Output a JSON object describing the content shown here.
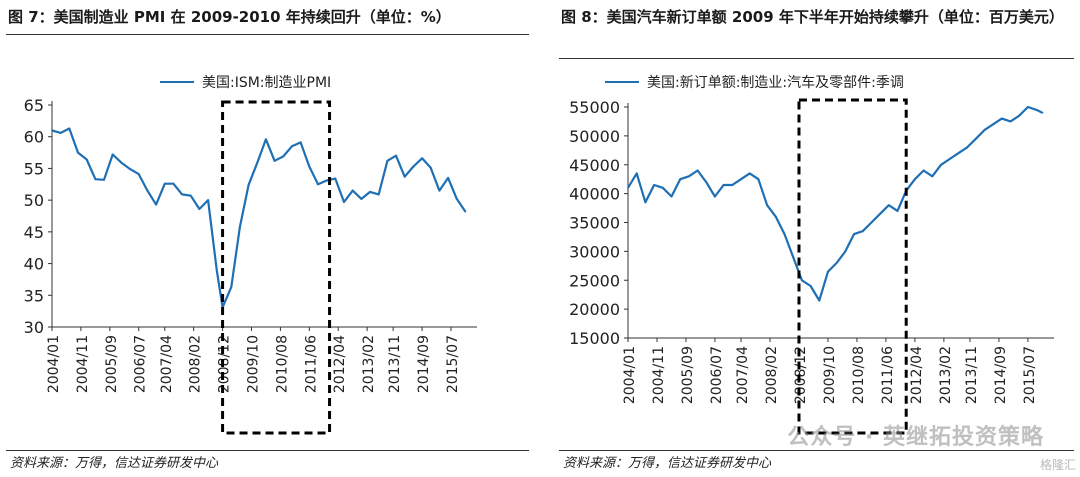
{
  "left": {
    "title": "图 7：美国制造业 PMI 在 2009-2010 年持续回升（单位：%）",
    "source": "资料来源：万得，信达证券研发中心",
    "chart_data": {
      "type": "line",
      "title": "图 7：美国制造业 PMI 在 2009-2010 年持续回升（单位：%）",
      "xlabel": "",
      "ylabel": "",
      "ylim": [
        30,
        65
      ],
      "yticks": [
        30,
        35,
        40,
        45,
        50,
        55,
        60,
        65
      ],
      "xlim": [
        "2004/01",
        "2016/04"
      ],
      "xticks": [
        "2004/01",
        "2004/11",
        "2005/09",
        "2006/07",
        "2007/04",
        "2008/02",
        "2008/12",
        "2009/10",
        "2010/08",
        "2011/06",
        "2012/04",
        "2013/02",
        "2013/11",
        "2014/09",
        "2015/07"
      ],
      "legend": "top-center",
      "grid": false,
      "highlight_box": {
        "from": "2008/12",
        "to": "2012/01",
        "style": "dashed"
      },
      "series": [
        {
          "name": "美国:ISM:制造业PMI",
          "color": "#1f6fb5",
          "x": [
            "2004/01",
            "2004/04",
            "2004/07",
            "2004/10",
            "2005/01",
            "2005/04",
            "2005/07",
            "2005/10",
            "2006/01",
            "2006/04",
            "2006/07",
            "2006/10",
            "2007/01",
            "2007/04",
            "2007/07",
            "2007/10",
            "2008/01",
            "2008/04",
            "2008/07",
            "2008/10",
            "2008/12",
            "2009/03",
            "2009/06",
            "2009/09",
            "2009/12",
            "2010/03",
            "2010/06",
            "2010/09",
            "2010/12",
            "2011/03",
            "2011/06",
            "2011/09",
            "2011/12",
            "2012/03",
            "2012/06",
            "2012/09",
            "2012/12",
            "2013/03",
            "2013/06",
            "2013/09",
            "2013/12",
            "2014/03",
            "2014/06",
            "2014/09",
            "2014/12",
            "2015/03",
            "2015/06",
            "2015/09",
            "2015/12"
          ],
          "values": [
            61,
            60.6,
            61.3,
            57.5,
            56.4,
            53.3,
            53.2,
            57.2,
            55.9,
            54.9,
            54.1,
            51.5,
            49.3,
            52.6,
            52.6,
            50.9,
            50.7,
            48.6,
            50.0,
            38.9,
            33.1,
            36.3,
            45.8,
            52.4,
            55.9,
            59.6,
            56.2,
            56.9,
            58.5,
            59.1,
            55.3,
            52.5,
            53.1,
            53.4,
            49.7,
            51.5,
            50.2,
            51.3,
            50.9,
            56.2,
            57.0,
            53.7,
            55.3,
            56.6,
            55.1,
            51.5,
            53.5,
            50.2,
            48.2
          ]
        }
      ]
    }
  },
  "right": {
    "title": "图 8：美国汽车新订单额 2009 年下半年开始持续攀升（单位：百万美元）",
    "source": "资料来源：万得，信达证券研发中心",
    "watermark": "公众号 · 英继拓投资策略",
    "watermark_small": "格隆汇",
    "chart_data": {
      "type": "line",
      "title": "图 8：美国汽车新订单额 2009 年下半年开始持续攀升（单位：百万美元）",
      "xlabel": "",
      "ylabel": "",
      "ylim": [
        15000,
        55000
      ],
      "yticks": [
        15000,
        20000,
        25000,
        30000,
        35000,
        40000,
        45000,
        50000,
        55000
      ],
      "xlim": [
        "2004/01",
        "2016/04"
      ],
      "xticks": [
        "2004/01",
        "2004/11",
        "2005/09",
        "2006/07",
        "2007/04",
        "2008/02",
        "2008/12",
        "2009/10",
        "2010/08",
        "2011/06",
        "2012/04",
        "2013/02",
        "2013/11",
        "2014/09",
        "2015/07"
      ],
      "legend": "top-center",
      "grid": false,
      "highlight_box": {
        "from": "2008/12",
        "to": "2012/01",
        "style": "dashed"
      },
      "series": [
        {
          "name": "美国:新订单额:制造业:汽车及零部件:季调",
          "color": "#1f6fb5",
          "x": [
            "2004/01",
            "2004/04",
            "2004/07",
            "2004/10",
            "2005/01",
            "2005/04",
            "2005/07",
            "2005/10",
            "2006/01",
            "2006/04",
            "2006/07",
            "2006/10",
            "2007/01",
            "2007/04",
            "2007/07",
            "2007/10",
            "2008/01",
            "2008/04",
            "2008/07",
            "2008/10",
            "2009/01",
            "2009/04",
            "2009/07",
            "2009/10",
            "2010/01",
            "2010/04",
            "2010/07",
            "2010/10",
            "2011/01",
            "2011/04",
            "2011/07",
            "2011/10",
            "2012/01",
            "2012/04",
            "2012/07",
            "2012/10",
            "2013/01",
            "2013/04",
            "2013/07",
            "2013/10",
            "2014/01",
            "2014/04",
            "2014/07",
            "2014/10",
            "2015/01",
            "2015/04",
            "2015/07",
            "2015/10",
            "2015/12"
          ],
          "values": [
            41000,
            43500,
            38500,
            41500,
            41000,
            39500,
            42500,
            43000,
            44000,
            42000,
            39500,
            41500,
            41500,
            42500,
            43500,
            42500,
            38000,
            36000,
            33000,
            29000,
            25000,
            24000,
            21500,
            26500,
            28000,
            30000,
            33000,
            33500,
            35000,
            36500,
            38000,
            37000,
            40500,
            42500,
            44000,
            43000,
            45000,
            46000,
            47000,
            48000,
            49500,
            51000,
            52000,
            53000,
            52500,
            53500,
            55000,
            54500,
            54000
          ]
        }
      ]
    }
  }
}
